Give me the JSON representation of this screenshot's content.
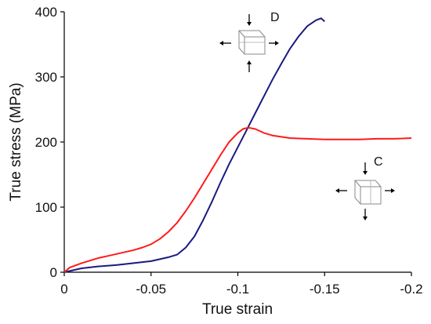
{
  "chart_data": {
    "type": "line",
    "xlabel": "True strain",
    "ylabel": "True stress (MPa)",
    "xlim": [
      0,
      -0.2
    ],
    "ylim": [
      0,
      400
    ],
    "xticks": [
      0,
      -0.05,
      -0.1,
      -0.15,
      -0.2
    ],
    "xtick_labels": [
      "0",
      "-0.05",
      "-0.1",
      "-0.15",
      "-0.2"
    ],
    "yticks": [
      0,
      100,
      200,
      300,
      400
    ],
    "ytick_labels": [
      "0",
      "100",
      "200",
      "300",
      "400"
    ],
    "grid": false,
    "series": [
      {
        "key": "D",
        "color": "#1a1a80",
        "x": [
          0,
          -0.005,
          -0.01,
          -0.02,
          -0.03,
          -0.04,
          -0.05,
          -0.06,
          -0.065,
          -0.07,
          -0.075,
          -0.08,
          -0.085,
          -0.09,
          -0.095,
          -0.1,
          -0.105,
          -0.11,
          -0.115,
          -0.12,
          -0.125,
          -0.13,
          -0.135,
          -0.14,
          -0.145,
          -0.148,
          -0.15
        ],
        "y": [
          0,
          3,
          6,
          9,
          11,
          14,
          17,
          23,
          27,
          38,
          55,
          80,
          108,
          138,
          166,
          192,
          218,
          244,
          270,
          296,
          320,
          343,
          362,
          378,
          387,
          390,
          385
        ]
      },
      {
        "key": "C",
        "color": "#ff1a1a",
        "x": [
          0,
          -0.003,
          -0.006,
          -0.01,
          -0.015,
          -0.02,
          -0.025,
          -0.03,
          -0.035,
          -0.04,
          -0.045,
          -0.05,
          -0.055,
          -0.06,
          -0.065,
          -0.07,
          -0.075,
          -0.08,
          -0.085,
          -0.09,
          -0.095,
          -0.1,
          -0.103,
          -0.106,
          -0.11,
          -0.115,
          -0.12,
          -0.13,
          -0.14,
          -0.15,
          -0.16,
          -0.17,
          -0.18,
          -0.19,
          -0.2
        ],
        "y": [
          0,
          7,
          10,
          14,
          18,
          22,
          25,
          28,
          31,
          34,
          38,
          43,
          51,
          62,
          76,
          94,
          114,
          136,
          158,
          180,
          200,
          214,
          220,
          222,
          220,
          214,
          210,
          206,
          205,
          204,
          204,
          204,
          205,
          205,
          206
        ]
      }
    ],
    "annotations": [
      {
        "label": "D",
        "near_series": "D"
      },
      {
        "label": "C",
        "near_series": "C"
      }
    ]
  }
}
